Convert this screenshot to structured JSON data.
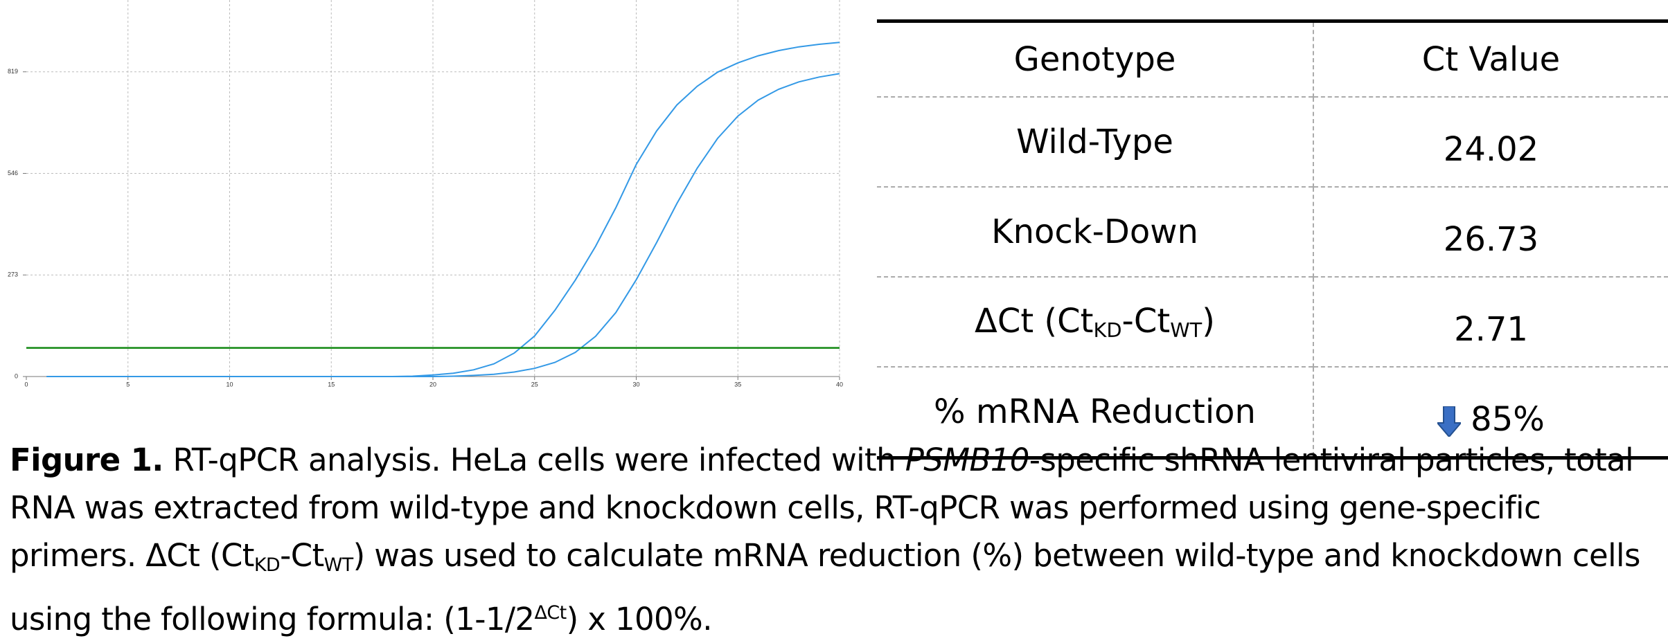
{
  "chart_data": {
    "type": "line",
    "x": [
      1,
      2,
      3,
      4,
      5,
      6,
      7,
      8,
      9,
      10,
      11,
      12,
      13,
      14,
      15,
      16,
      17,
      18,
      19,
      20,
      21,
      22,
      23,
      24,
      25,
      26,
      27,
      28,
      29,
      30,
      31,
      32,
      33,
      34,
      35,
      36,
      37,
      38,
      39,
      40
    ],
    "series": [
      {
        "color": "#3399e6",
        "values": [
          0,
          0,
          0,
          0,
          0,
          0,
          0,
          0,
          0,
          0,
          0,
          0,
          0,
          0,
          0,
          0,
          0,
          0,
          1,
          4,
          9,
          18,
          34,
          63,
          109,
          178,
          259,
          350,
          454,
          570,
          660,
          730,
          780,
          818,
          843,
          862,
          876,
          886,
          893,
          898
        ]
      },
      {
        "color": "#3399e6",
        "values": [
          0,
          0,
          0,
          0,
          0,
          0,
          0,
          0,
          0,
          0,
          0,
          0,
          0,
          0,
          0,
          0,
          0,
          0,
          0,
          0,
          1,
          3,
          6,
          12,
          22,
          38,
          65,
          108,
          172,
          260,
          360,
          465,
          560,
          640,
          700,
          743,
          772,
          792,
          805,
          814
        ]
      }
    ],
    "threshold": 77,
    "threshold_color": "#118811",
    "xlim": [
      0,
      40
    ],
    "xticks": [
      0,
      5,
      10,
      15,
      20,
      25,
      30,
      35,
      40
    ],
    "ylim": [
      0,
      1012
    ],
    "yticks": [
      0,
      273,
      546,
      819
    ],
    "grid": true
  },
  "table": {
    "header": [
      "Genotype",
      "Ct Value"
    ],
    "rows": [
      [
        [
          "Wild-Type"
        ],
        [
          24.02
        ]
      ],
      [
        [
          "Knock-Down"
        ],
        [
          26.73
        ]
      ],
      [
        [
          "ΔCt (Ct",
          {
            "sub": "KD"
          },
          "-Ct",
          {
            "sub": "WT"
          },
          ")"
        ],
        [
          2.71
        ]
      ],
      [
        [
          "% mRNA Reduction"
        ],
        [
          "85%"
        ]
      ]
    ]
  },
  "caption": [
    {
      "b": "Figure 1."
    },
    " RT-qPCR analysis. HeLa  cells were infected with ",
    {
      "i": "PSMB10"
    },
    "-specific shRNA lentiviral particles, total RNA was extracted from wild-type and knockdown cells, RT-qPCR was performed using gene-specific primers. ΔCt (Ct",
    {
      "sub": "KD"
    },
    "-Ct",
    {
      "sub": "WT"
    },
    ") was used to calculate mRNA reduction (%) between wild-type and knockdown cells using the following formula: (1-1/2",
    {
      "sup": "ΔCt"
    },
    ") x 100%."
  ]
}
